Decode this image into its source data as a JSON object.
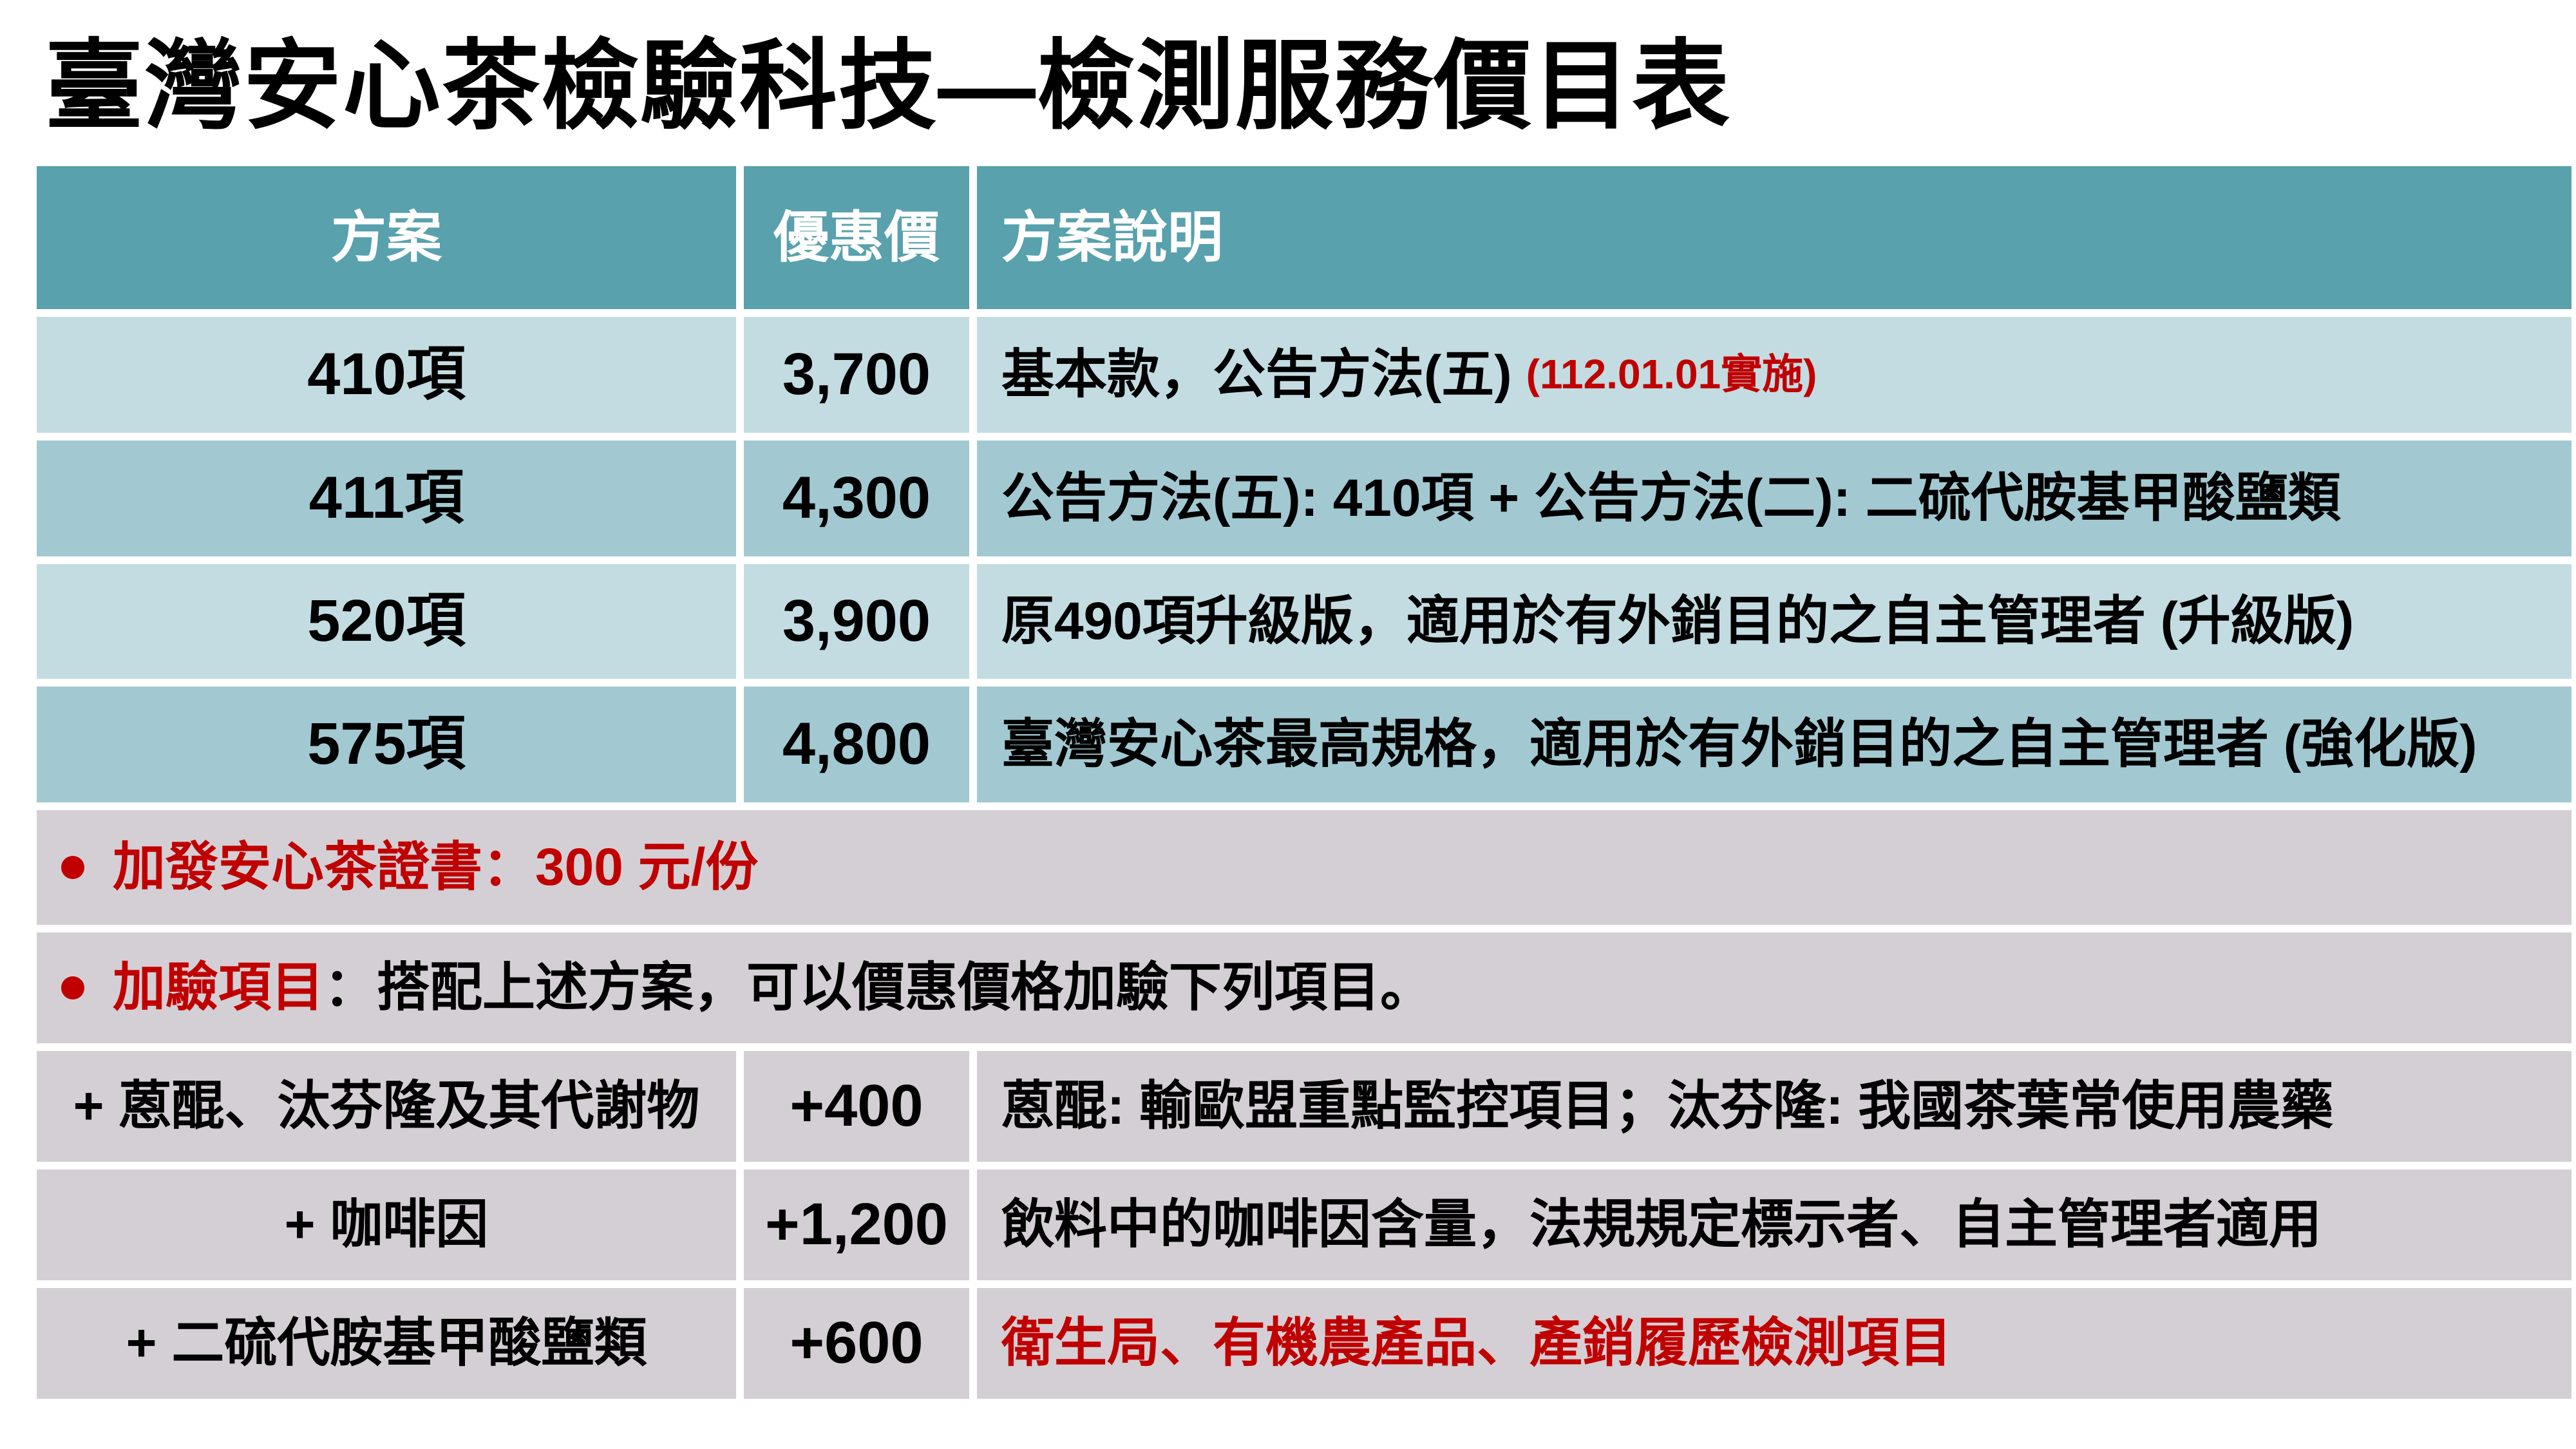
{
  "title": "臺灣安心茶檢驗科技—檢測服務價目表",
  "colors": {
    "header_bg": "#58a1ad",
    "row_light_bg": "#c3dce1",
    "row_dark_bg": "#a2c9d1",
    "note_section_bg": "#d4cfd4",
    "accent_red": "#c00000",
    "header_text": "#ffffff",
    "body_text": "#000000"
  },
  "table": {
    "headers": [
      "方案",
      "優惠價",
      "方案說明"
    ],
    "plan_rows": [
      {
        "plan": "410項",
        "price": "3,700",
        "desc": "基本款，公告方法(五) ",
        "note": "(112.01.01實施)"
      },
      {
        "plan": "411項",
        "price": "4,300",
        "desc": "公告方法(五): 410項 + 公告方法(二): 二硫代胺基甲酸鹽類"
      },
      {
        "plan": "520項",
        "price": "3,900",
        "desc": "原490項升級版，適用於有外銷目的之自主管理者 (升級版)"
      },
      {
        "plan": "575項",
        "price": "4,800",
        "desc": "臺灣安心茶最高規格，適用於有外銷目的之自主管理者 (強化版)"
      }
    ],
    "notes": [
      {
        "highlight": "加發安心茶證書：300 元/份",
        "rest": ""
      },
      {
        "highlight": "加驗項目",
        "rest": "：搭配上述方案，可以價惠價格加驗下列項目。"
      }
    ],
    "addon_rows": [
      {
        "item": "+ 蒽醌、汰芬隆及其代謝物",
        "price": "+400",
        "desc": "蒽醌: 輸歐盟重點監控項目；汰芬隆: 我國茶葉常使用農藥"
      },
      {
        "item": "+ 咖啡因",
        "price": "+1,200",
        "desc": "飲料中的咖啡因含量，法規規定標示者、自主管理者適用"
      },
      {
        "item": "+ 二硫代胺基甲酸鹽類",
        "price": "+600",
        "desc": "衛生局、有機農產品、產銷履歷檢測項目"
      }
    ]
  }
}
